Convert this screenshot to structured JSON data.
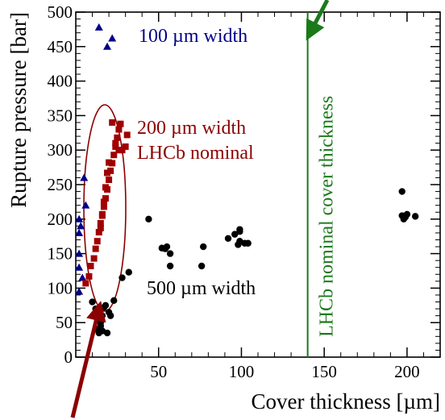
{
  "chart_data": {
    "type": "scatter",
    "xlabel": "Cover thickness [µm]",
    "ylabel": "Rupture pressure [bar]",
    "xlim": [
      0,
      220
    ],
    "ylim": [
      0,
      500
    ],
    "xticks": [
      50,
      100,
      150,
      200
    ],
    "yticks": [
      0,
      50,
      100,
      150,
      200,
      250,
      300,
      350,
      400,
      450,
      500
    ],
    "xtick_labels": [
      "50",
      "100",
      "150",
      "200"
    ],
    "ytick_labels": [
      "0",
      "50",
      "100",
      "150",
      "200",
      "250",
      "300",
      "350",
      "400",
      "450",
      "500"
    ],
    "grid": false,
    "series": [
      {
        "marker": "triangle",
        "color": "#00008b",
        "points": [
          [
            2,
            95
          ],
          [
            2,
            130
          ],
          [
            2,
            150
          ],
          [
            2,
            180
          ],
          [
            2,
            200
          ],
          [
            3,
            190
          ],
          [
            4,
            115
          ],
          [
            5,
            260
          ],
          [
            6,
            220
          ],
          [
            14,
            478
          ],
          [
            19,
            450
          ],
          [
            22,
            462
          ]
        ]
      },
      {
        "marker": "square",
        "color": "#a00000",
        "points": [
          [
            6,
            107
          ],
          [
            8,
            117
          ],
          [
            9,
            132
          ],
          [
            11,
            143
          ],
          [
            12,
            157
          ],
          [
            13,
            168
          ],
          [
            14,
            181
          ],
          [
            15,
            194
          ],
          [
            16,
            207
          ],
          [
            17,
            218
          ],
          [
            18,
            230
          ],
          [
            19,
            243
          ],
          [
            20,
            257
          ],
          [
            21,
            270
          ],
          [
            22,
            281
          ],
          [
            23,
            293
          ],
          [
            24,
            305
          ],
          [
            25,
            318
          ],
          [
            26,
            330
          ],
          [
            27,
            338
          ],
          [
            22,
            340
          ],
          [
            24,
            310
          ],
          [
            26,
            300
          ],
          [
            28,
            300
          ],
          [
            30,
            305
          ],
          [
            31,
            322
          ],
          [
            19,
            267
          ],
          [
            20,
            282
          ],
          [
            18,
            246
          ],
          [
            17,
            225
          ],
          [
            16,
            205
          ],
          [
            15,
            187
          ]
        ]
      },
      {
        "marker": "circle",
        "color": "#000000",
        "points": [
          [
            10,
            80
          ],
          [
            12,
            70
          ],
          [
            12,
            60
          ],
          [
            13,
            55
          ],
          [
            13,
            40
          ],
          [
            14,
            35
          ],
          [
            15,
            50
          ],
          [
            15,
            45
          ],
          [
            16,
            38
          ],
          [
            16,
            60
          ],
          [
            17,
            72
          ],
          [
            18,
            75
          ],
          [
            19,
            35
          ],
          [
            20,
            65
          ],
          [
            21,
            60
          ],
          [
            23,
            82
          ],
          [
            28,
            115
          ],
          [
            32,
            123
          ],
          [
            44,
            200
          ],
          [
            52,
            158
          ],
          [
            54,
            157
          ],
          [
            55,
            160
          ],
          [
            57,
            150
          ],
          [
            57,
            132
          ],
          [
            76,
            132
          ],
          [
            77,
            160
          ],
          [
            92,
            172
          ],
          [
            96,
            178
          ],
          [
            99,
            182
          ],
          [
            99,
            185
          ],
          [
            98,
            163
          ],
          [
            99,
            168
          ],
          [
            102,
            165
          ],
          [
            104,
            165
          ],
          [
            197,
            240
          ],
          [
            197,
            205
          ],
          [
            198,
            200
          ],
          [
            199,
            203
          ],
          [
            200,
            207
          ],
          [
            205,
            204
          ]
        ]
      }
    ],
    "annotations": {
      "label_100um": "100 µm width",
      "label_200um_line1": "200 µm width",
      "label_200um_line2": "LHCb nominal",
      "label_500um": "500 µm width",
      "vline_label": "LHCb nominal cover thickness",
      "vline_x": 140
    },
    "colors": {
      "blue": "#00008b",
      "red": "#a00000",
      "green": "#1a7a1a",
      "black": "#000000"
    }
  }
}
